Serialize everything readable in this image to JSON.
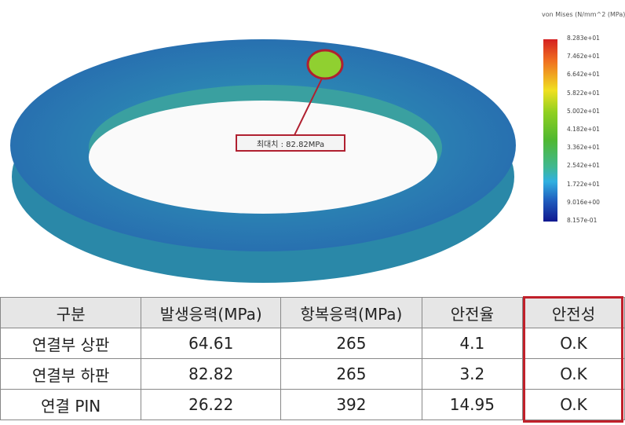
{
  "figure": {
    "legend_title": "von Mises (N/mm^2 (MPa))",
    "legend_labels": [
      "8.283e+01",
      "7.462e+01",
      "6.642e+01",
      "5.822e+01",
      "5.002e+01",
      "4.182e+01",
      "3.362e+01",
      "2.542e+01",
      "1.722e+01",
      "9.016e+00",
      "8.157e-01"
    ],
    "callout": "최대치 : 82.82MPa",
    "colors": {
      "max": "#d42020",
      "min": "#101890",
      "callout_border": "#b02030"
    }
  },
  "table": {
    "headers": [
      "구분",
      "발생응력(MPa)",
      "항복응력(MPa)",
      "안전율",
      "안전성"
    ],
    "rows": [
      [
        "연결부 상판",
        "64.61",
        "265",
        "4.1",
        "O.K"
      ],
      [
        "연결부 하판",
        "82.82",
        "265",
        "3.2",
        "O.K"
      ],
      [
        "연결 PIN",
        "26.22",
        "392",
        "14.95",
        "O.K"
      ]
    ],
    "highlight_color": "#c0202a"
  }
}
